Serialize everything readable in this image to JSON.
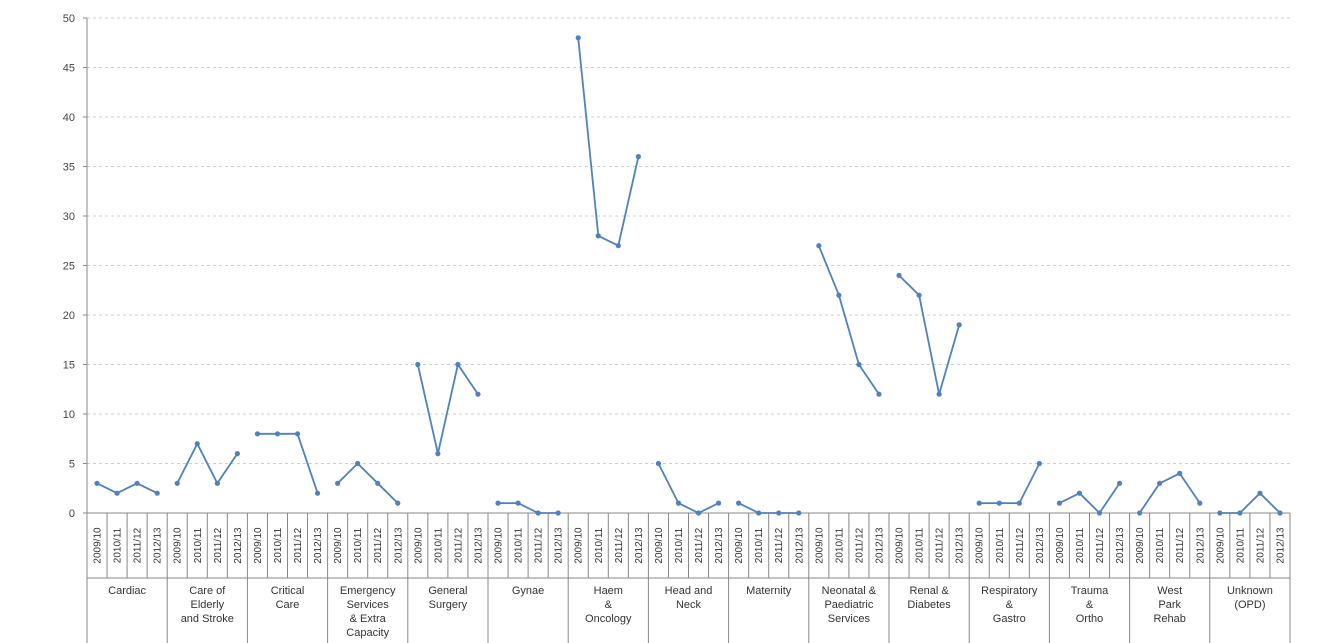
{
  "chart_data": {
    "type": "line",
    "title": "",
    "xlabel": "",
    "ylabel": "",
    "ylim": [
      0,
      50
    ],
    "yticks": [
      0,
      5,
      10,
      15,
      20,
      25,
      30,
      35,
      40,
      45,
      50
    ],
    "grid": true,
    "years": [
      "2009/10",
      "2010/11",
      "2011/12",
      "2012/13"
    ],
    "line_color": "#4f81bd",
    "groups": [
      {
        "label": [
          "Cardiac"
        ],
        "values": [
          3,
          2,
          3,
          2
        ]
      },
      {
        "label": [
          "Care of",
          "Elderly",
          "and Stroke"
        ],
        "values": [
          3,
          7,
          3,
          6
        ]
      },
      {
        "label": [
          "Critical",
          "Care"
        ],
        "values": [
          8,
          8,
          8,
          2
        ]
      },
      {
        "label": [
          "Emergency",
          "Services",
          "& Extra",
          "Capacity"
        ],
        "values": [
          3,
          5,
          3,
          1
        ]
      },
      {
        "label": [
          "General",
          "Surgery"
        ],
        "values": [
          15,
          6,
          15,
          12
        ]
      },
      {
        "label": [
          "Gynae"
        ],
        "values": [
          1,
          1,
          0,
          0
        ]
      },
      {
        "label": [
          "Haem",
          "&",
          "Oncology"
        ],
        "values": [
          48,
          28,
          27,
          36
        ]
      },
      {
        "label": [
          "Head and",
          "Neck"
        ],
        "values": [
          5,
          1,
          0,
          1
        ]
      },
      {
        "label": [
          "Maternity"
        ],
        "values": [
          1,
          0,
          0,
          0
        ]
      },
      {
        "label": [
          "Neonatal &",
          "Paediatric",
          "Services"
        ],
        "values": [
          27,
          22,
          15,
          12
        ]
      },
      {
        "label": [
          "Renal &",
          "Diabetes"
        ],
        "values": [
          24,
          22,
          12,
          19
        ]
      },
      {
        "label": [
          "Respiratory",
          "&",
          "Gastro"
        ],
        "values": [
          1,
          1,
          1,
          5
        ]
      },
      {
        "label": [
          "Trauma",
          "&",
          "Ortho"
        ],
        "values": [
          1,
          2,
          0,
          3
        ]
      },
      {
        "label": [
          "West",
          "Park",
          "Rehab"
        ],
        "values": [
          0,
          3,
          4,
          1
        ]
      },
      {
        "label": [
          "Unknown",
          "(OPD)"
        ],
        "values": [
          0,
          0,
          2,
          0
        ]
      }
    ]
  }
}
